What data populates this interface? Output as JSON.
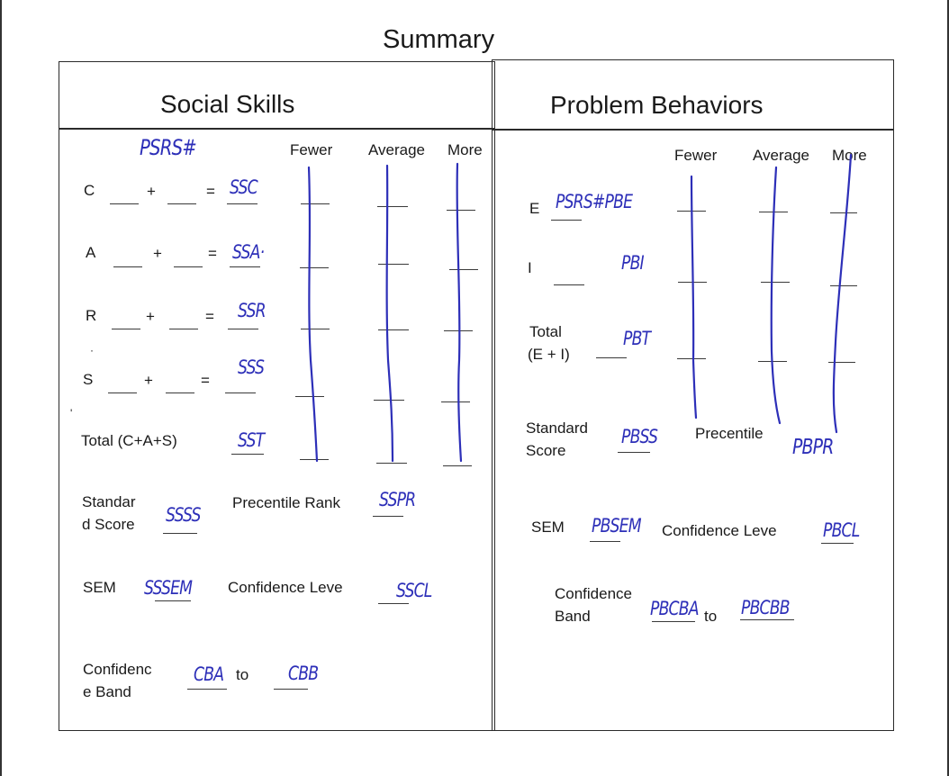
{
  "title": "Summary",
  "social_skills": {
    "heading": "Social Skills",
    "code": "PSRS#",
    "scale": [
      "Fewer",
      "Average",
      "More"
    ],
    "rows": [
      {
        "label": "C",
        "plus": "+",
        "equals": "=",
        "code": "SSC"
      },
      {
        "label": "A",
        "plus": "+",
        "equals": "=",
        "code": "SSA·"
      },
      {
        "label": "R",
        "plus": "+",
        "equals": "=",
        "code": "SSR"
      },
      {
        "label": "S",
        "plus": "+",
        "equals": "=",
        "code": "SSS"
      }
    ],
    "total": {
      "label": "Total (C+A+S)",
      "code": "SST"
    },
    "standard_score": {
      "label_line1": "Standar",
      "label_line2": "d Score",
      "code": "SSSS"
    },
    "percentile_rank": {
      "label": "Precentile Rank",
      "code": "SSPR"
    },
    "sem": {
      "label": "SEM",
      "code": "SSSEM"
    },
    "confidence_level": {
      "label": "Confidence Leve",
      "code": "SSCL"
    },
    "confidence_band": {
      "label_line1": "Confidenc",
      "label_line2": "e Band",
      "low": "CBA",
      "to": "to",
      "high": "CBB"
    }
  },
  "problem_behaviors": {
    "heading": "Problem Behaviors",
    "scale": [
      "Fewer",
      "Average",
      "More"
    ],
    "rows": [
      {
        "label": "E",
        "code": "PSRS#PBE"
      },
      {
        "label": "I",
        "code": "PBI"
      }
    ],
    "total": {
      "label_line1": "Total",
      "label_line2": "(E + I)",
      "code": "PBT"
    },
    "standard_score": {
      "label_line1": "Standard",
      "label_line2": "Score",
      "code": "PBSS"
    },
    "percentile": {
      "label": "Precentile",
      "code": "PBPR"
    },
    "sem": {
      "label": "SEM",
      "code": "PBSEM"
    },
    "confidence_level": {
      "label": "Confidence Leve",
      "code": "PBCL"
    },
    "confidence_band": {
      "label_line1": "Confidence",
      "label_line2": "Band",
      "low": "PBCBA",
      "to": "to",
      "high": "PBCBB"
    }
  }
}
